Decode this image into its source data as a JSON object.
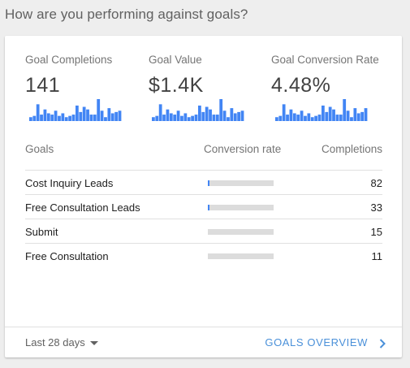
{
  "heading": "How are you performing against goals?",
  "accent_color": "#4285f4",
  "metrics": [
    {
      "label": "Goal Completions",
      "value": "141",
      "spark": [
        3,
        4,
        13,
        5,
        9,
        6,
        5,
        8,
        4,
        6,
        3,
        4,
        5,
        12,
        7,
        11,
        9,
        5,
        5,
        17,
        8,
        3,
        10,
        6,
        7,
        8
      ]
    },
    {
      "label": "Goal Value",
      "value": "$1.4K",
      "spark": [
        3,
        4,
        13,
        5,
        9,
        6,
        5,
        8,
        4,
        6,
        3,
        4,
        5,
        12,
        7,
        11,
        9,
        5,
        5,
        17,
        8,
        3,
        10,
        6,
        7,
        8
      ]
    },
    {
      "label": "Goal Conversion Rate",
      "value": "4.48%",
      "spark": [
        3,
        4,
        13,
        5,
        9,
        6,
        5,
        8,
        4,
        6,
        3,
        4,
        5,
        12,
        7,
        11,
        9,
        5,
        5,
        17,
        8,
        3,
        10,
        6,
        7,
        10
      ]
    }
  ],
  "table": {
    "col_goals": "Goals",
    "col_rate": "Conversion rate",
    "col_completions": "Completions",
    "rows": [
      {
        "name": "Cost Inquiry Leads",
        "rate_fraction": 0.03,
        "completions": "82"
      },
      {
        "name": "Free Consultation Leads",
        "rate_fraction": 0.02,
        "completions": "33"
      },
      {
        "name": "Submit",
        "rate_fraction": 0,
        "completions": "15"
      },
      {
        "name": "Free Consultation",
        "rate_fraction": 0,
        "completions": "11"
      }
    ]
  },
  "footer": {
    "range_label": "Last 28 days",
    "overview_label": "GOALS OVERVIEW"
  }
}
